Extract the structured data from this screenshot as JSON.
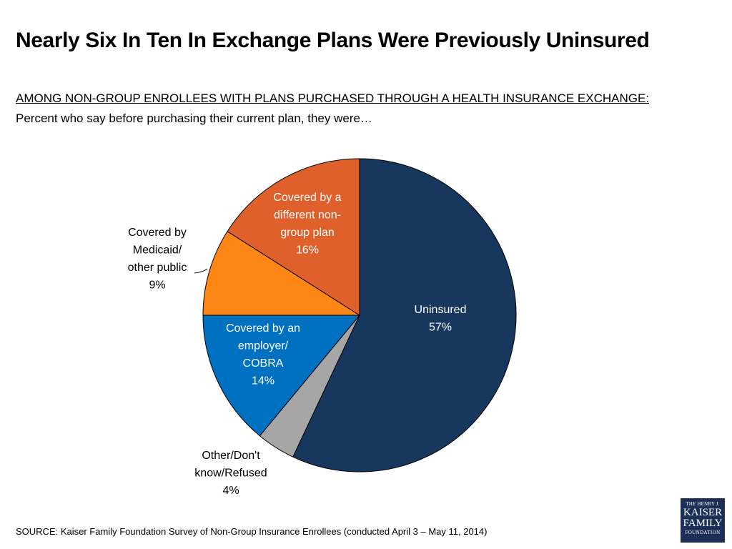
{
  "title": "Nearly Six In Ten In Exchange Plans Were Previously Uninsured",
  "subtitle_line1": "AMONG NON-GROUP ENROLLEES WITH PLANS PURCHASED THROUGH A HEALTH INSURANCE EXCHANGE:",
  "subtitle_line2": "Percent who say before purchasing their current plan, they were…",
  "source": "SOURCE: Kaiser Family Foundation Survey of Non-Group Insurance Enrollees  (conducted April 3 – May 11, 2014)",
  "logo": {
    "line1": "THE HENRY J.",
    "line2": "KAISER",
    "line3": "FAMILY",
    "line4": "FOUNDATION"
  },
  "chart_data": {
    "type": "pie",
    "start": "12 o'clock",
    "direction": "clockwise",
    "slices": [
      {
        "label": "Uninsured",
        "lines": [
          "Uninsured"
        ],
        "value": 57,
        "value_label": "57%",
        "color": "#17375e",
        "label_color": "#ffffff"
      },
      {
        "label": "Other/Don't know/Refused",
        "lines": [
          "Other/Don't",
          "know/Refused"
        ],
        "value": 4,
        "value_label": "4%",
        "color": "#a6a6a6",
        "label_color": "#000000"
      },
      {
        "label": "Covered by an employer/ COBRA",
        "lines": [
          "Covered by an",
          "employer/",
          "COBRA"
        ],
        "value": 14,
        "value_label": "14%",
        "color": "#0070c0",
        "label_color": "#ffffff"
      },
      {
        "label": "Covered by Medicaid/ other public",
        "lines": [
          "Covered by",
          "Medicaid/",
          "other public"
        ],
        "value": 9,
        "value_label": "9%",
        "color": "#fd8616",
        "label_color": "#000000"
      },
      {
        "label": "Covered by a different non-group plan",
        "lines": [
          "Covered by a",
          "different non-",
          "group plan"
        ],
        "value": 16,
        "value_label": "16%",
        "color": "#e0602c",
        "label_color": "#ffffff"
      }
    ]
  }
}
